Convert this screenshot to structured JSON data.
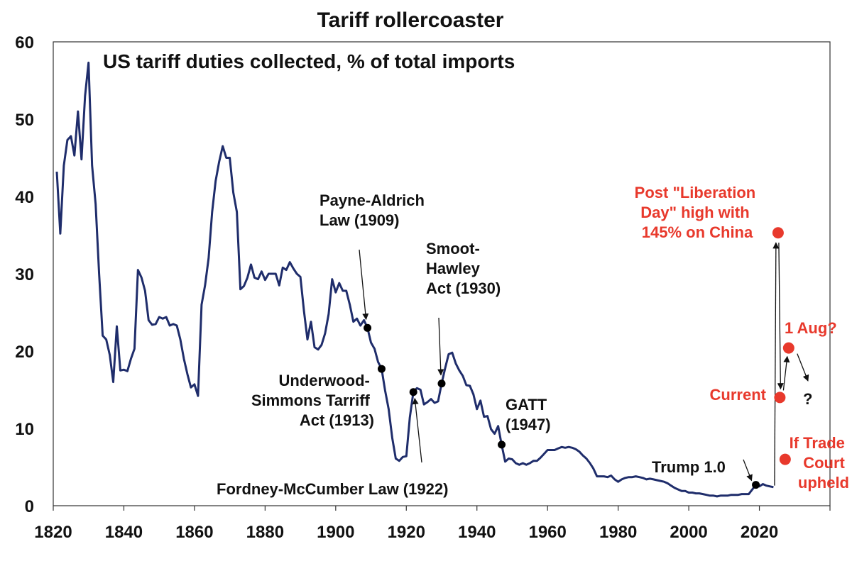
{
  "chart_data": {
    "type": "line",
    "title": "Tariff rollercoaster",
    "subtitle": "US tariff duties collected, % of total imports",
    "xlim": [
      1820,
      2040
    ],
    "ylim": [
      0,
      60
    ],
    "x_ticks": [
      1820,
      1840,
      1860,
      1880,
      1900,
      1920,
      1940,
      1960,
      1980,
      2000,
      2020
    ],
    "y_ticks": [
      0,
      10,
      20,
      30,
      40,
      50,
      60
    ],
    "grid": false,
    "colors": {
      "line": "#1f2d6b",
      "marker": "#000000",
      "highlight": "#e8392c",
      "text": "#111111"
    },
    "series": [
      {
        "values": [
          [
            1821,
            43.2
          ],
          [
            1822,
            35.2
          ],
          [
            1823,
            44
          ],
          [
            1824,
            47.3
          ],
          [
            1825,
            47.8
          ],
          [
            1826,
            45.3
          ],
          [
            1827,
            51
          ],
          [
            1828,
            44.8
          ],
          [
            1829,
            53
          ],
          [
            1830,
            57.3
          ],
          [
            1831,
            44
          ],
          [
            1832,
            39
          ],
          [
            1833,
            30
          ],
          [
            1834,
            22
          ],
          [
            1835,
            21.5
          ],
          [
            1836,
            19.5
          ],
          [
            1837,
            16
          ],
          [
            1838,
            23.2
          ],
          [
            1839,
            17.5
          ],
          [
            1840,
            17.6
          ],
          [
            1841,
            17.4
          ],
          [
            1842,
            19
          ],
          [
            1843,
            20.3
          ],
          [
            1844,
            30.5
          ],
          [
            1845,
            29.5
          ],
          [
            1846,
            27.8
          ],
          [
            1847,
            24
          ],
          [
            1848,
            23.4
          ],
          [
            1849,
            23.5
          ],
          [
            1850,
            24.4
          ],
          [
            1851,
            24.2
          ],
          [
            1852,
            24.4
          ],
          [
            1853,
            23.3
          ],
          [
            1854,
            23.5
          ],
          [
            1855,
            23.3
          ],
          [
            1856,
            21.5
          ],
          [
            1857,
            19
          ],
          [
            1858,
            17
          ],
          [
            1859,
            15.3
          ],
          [
            1860,
            15.7
          ],
          [
            1861,
            14.2
          ],
          [
            1862,
            26
          ],
          [
            1863,
            28.5
          ],
          [
            1864,
            32
          ],
          [
            1865,
            38
          ],
          [
            1866,
            42
          ],
          [
            1867,
            44.5
          ],
          [
            1868,
            46.5
          ],
          [
            1869,
            45
          ],
          [
            1870,
            45
          ],
          [
            1871,
            40.5
          ],
          [
            1872,
            38
          ],
          [
            1873,
            28
          ],
          [
            1874,
            28.4
          ],
          [
            1875,
            29.5
          ],
          [
            1876,
            31.2
          ],
          [
            1877,
            29.5
          ],
          [
            1878,
            29.3
          ],
          [
            1879,
            30.3
          ],
          [
            1880,
            29.2
          ],
          [
            1881,
            30
          ],
          [
            1882,
            30
          ],
          [
            1883,
            30
          ],
          [
            1884,
            28.5
          ],
          [
            1885,
            30.8
          ],
          [
            1886,
            30.5
          ],
          [
            1887,
            31.5
          ],
          [
            1888,
            30.7
          ],
          [
            1889,
            30
          ],
          [
            1890,
            29.6
          ],
          [
            1891,
            25.2
          ],
          [
            1892,
            21.5
          ],
          [
            1893,
            23.8
          ],
          [
            1894,
            20.5
          ],
          [
            1895,
            20.2
          ],
          [
            1896,
            20.8
          ],
          [
            1897,
            22.3
          ],
          [
            1898,
            24.8
          ],
          [
            1899,
            29.3
          ],
          [
            1900,
            27.6
          ],
          [
            1901,
            28.8
          ],
          [
            1902,
            27.8
          ],
          [
            1903,
            27.8
          ],
          [
            1904,
            26
          ],
          [
            1905,
            23.8
          ],
          [
            1906,
            24.2
          ],
          [
            1907,
            23.3
          ],
          [
            1908,
            24
          ],
          [
            1909,
            23
          ],
          [
            1910,
            21.1
          ],
          [
            1911,
            20.3
          ],
          [
            1912,
            18.6
          ],
          [
            1913,
            17.7
          ],
          [
            1914,
            14.9
          ],
          [
            1915,
            12.5
          ],
          [
            1916,
            8.8
          ],
          [
            1917,
            6.1
          ],
          [
            1918,
            5.8
          ],
          [
            1919,
            6.3
          ],
          [
            1920,
            6.4
          ],
          [
            1921,
            11.4
          ],
          [
            1922,
            14.7
          ],
          [
            1923,
            15.2
          ],
          [
            1924,
            15
          ],
          [
            1925,
            13.1
          ],
          [
            1926,
            13.4
          ],
          [
            1927,
            13.8
          ],
          [
            1928,
            13.3
          ],
          [
            1929,
            13.5
          ],
          [
            1930,
            15.8
          ],
          [
            1931,
            17.8
          ],
          [
            1932,
            19.6
          ],
          [
            1933,
            19.8
          ],
          [
            1934,
            18.4
          ],
          [
            1935,
            17.5
          ],
          [
            1936,
            16.8
          ],
          [
            1937,
            15.6
          ],
          [
            1938,
            15.5
          ],
          [
            1939,
            14.4
          ],
          [
            1940,
            12.5
          ],
          [
            1941,
            13.6
          ],
          [
            1942,
            11.5
          ],
          [
            1943,
            11.6
          ],
          [
            1944,
            9.9
          ],
          [
            1945,
            9.3
          ],
          [
            1946,
            10.3
          ],
          [
            1947,
            7.9
          ],
          [
            1948,
            5.7
          ],
          [
            1949,
            6.1
          ],
          [
            1950,
            6
          ],
          [
            1951,
            5.5
          ],
          [
            1952,
            5.3
          ],
          [
            1953,
            5.5
          ],
          [
            1954,
            5.3
          ],
          [
            1955,
            5.5
          ],
          [
            1956,
            5.8
          ],
          [
            1957,
            5.8
          ],
          [
            1958,
            6.2
          ],
          [
            1959,
            6.7
          ],
          [
            1960,
            7.2
          ],
          [
            1961,
            7.2
          ],
          [
            1962,
            7.2
          ],
          [
            1963,
            7.4
          ],
          [
            1964,
            7.6
          ],
          [
            1965,
            7.5
          ],
          [
            1966,
            7.6
          ],
          [
            1967,
            7.5
          ],
          [
            1968,
            7.3
          ],
          [
            1969,
            7
          ],
          [
            1970,
            6.5
          ],
          [
            1971,
            6.1
          ],
          [
            1972,
            5.5
          ],
          [
            1973,
            4.8
          ],
          [
            1974,
            3.8
          ],
          [
            1975,
            3.8
          ],
          [
            1976,
            3.8
          ],
          [
            1977,
            3.7
          ],
          [
            1978,
            3.9
          ],
          [
            1979,
            3.4
          ],
          [
            1980,
            3.1
          ],
          [
            1981,
            3.4
          ],
          [
            1982,
            3.6
          ],
          [
            1983,
            3.7
          ],
          [
            1984,
            3.7
          ],
          [
            1985,
            3.8
          ],
          [
            1986,
            3.7
          ],
          [
            1987,
            3.6
          ],
          [
            1988,
            3.4
          ],
          [
            1989,
            3.5
          ],
          [
            1990,
            3.4
          ],
          [
            1991,
            3.3
          ],
          [
            1992,
            3.2
          ],
          [
            1993,
            3.1
          ],
          [
            1994,
            2.9
          ],
          [
            1995,
            2.6
          ],
          [
            1996,
            2.3
          ],
          [
            1997,
            2.1
          ],
          [
            1998,
            1.9
          ],
          [
            1999,
            1.9
          ],
          [
            2000,
            1.7
          ],
          [
            2001,
            1.7
          ],
          [
            2002,
            1.6
          ],
          [
            2003,
            1.6
          ],
          [
            2004,
            1.5
          ],
          [
            2005,
            1.4
          ],
          [
            2006,
            1.3
          ],
          [
            2007,
            1.3
          ],
          [
            2008,
            1.2
          ],
          [
            2009,
            1.3
          ],
          [
            2010,
            1.3
          ],
          [
            2011,
            1.3
          ],
          [
            2012,
            1.4
          ],
          [
            2013,
            1.4
          ],
          [
            2014,
            1.4
          ],
          [
            2015,
            1.5
          ],
          [
            2016,
            1.5
          ],
          [
            2017,
            1.5
          ],
          [
            2018,
            2.1
          ],
          [
            2019,
            2.7
          ],
          [
            2020,
            2.5
          ],
          [
            2021,
            2.8
          ],
          [
            2022,
            2.6
          ],
          [
            2023,
            2.5
          ],
          [
            2024,
            2.4
          ]
        ]
      }
    ],
    "event_markers": [
      {
        "x": 1909,
        "y": 23
      },
      {
        "x": 1913,
        "y": 17.7
      },
      {
        "x": 1922,
        "y": 14.7
      },
      {
        "x": 1930,
        "y": 15.8
      },
      {
        "x": 1947,
        "y": 7.9
      },
      {
        "x": 2019,
        "y": 2.7
      }
    ],
    "scenario_points": [
      {
        "x": 2025.3,
        "y": 35.3
      },
      {
        "x": 2028.3,
        "y": 20.4
      },
      {
        "x": 2025.8,
        "y": 14
      },
      {
        "x": 2027.3,
        "y": 6
      }
    ],
    "annotations": {
      "payne_aldrich": [
        "Payne-Aldrich",
        "Law (1909)"
      ],
      "smoot_hawley": [
        "Smoot-",
        "Hawley",
        "Act (1930)"
      ],
      "underwood": [
        "Underwood-",
        "Simmons Tarriff",
        "Act (1913)"
      ],
      "gatt": [
        "GATT",
        "(1947)"
      ],
      "fordney": "Fordney-McCumber Law (1922)",
      "trump": "Trump 1.0",
      "liberation": [
        "Post \"Liberation",
        "Day\" high with",
        "145% on China"
      ],
      "aug": "1 Aug?",
      "current": "Current",
      "question": "?",
      "trade_court": [
        "If Trade",
        "Court",
        "upheld"
      ]
    }
  }
}
